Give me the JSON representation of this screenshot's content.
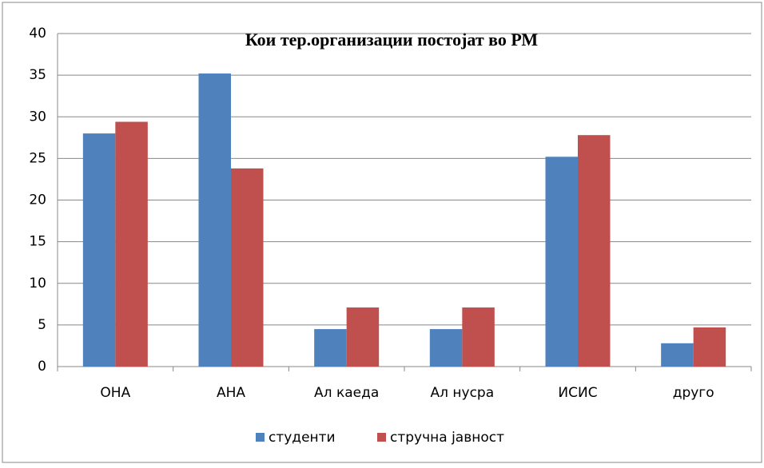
{
  "chart_data": {
    "type": "bar",
    "title": "Кои тер.организации  постојат  во РМ",
    "categories": [
      "ОНА",
      "АНА",
      "Ал каеда",
      "Ал нусра",
      "ИСИС",
      "друго"
    ],
    "series": [
      {
        "name": "студенти",
        "color": "#4f81bd",
        "values": [
          28.0,
          35.2,
          4.5,
          4.5,
          25.2,
          2.8
        ]
      },
      {
        "name": "стручна јавност",
        "color": "#c0504d",
        "values": [
          29.4,
          23.8,
          7.1,
          7.1,
          27.8,
          4.7
        ]
      }
    ],
    "ylim": [
      0,
      40
    ],
    "yticks": [
      0,
      5,
      10,
      15,
      20,
      25,
      30,
      35,
      40
    ],
    "grid": true,
    "legend": "bottom"
  }
}
